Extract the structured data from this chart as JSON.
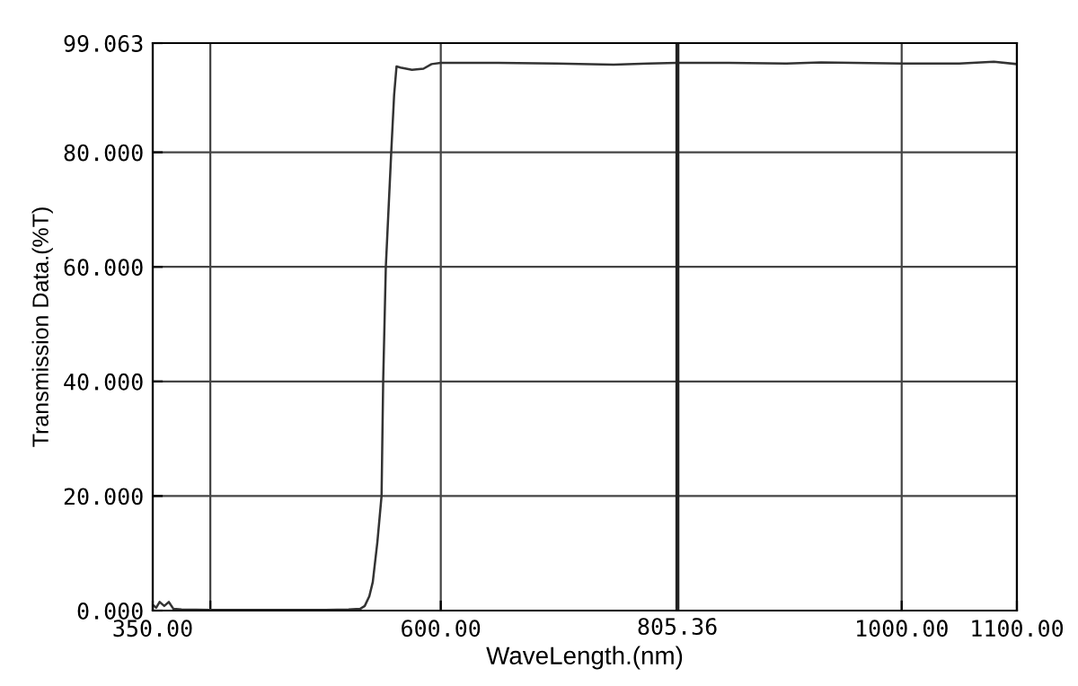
{
  "chart_data": {
    "type": "line",
    "xlabel": "WaveLength.(nm)",
    "ylabel": "Transmission Data.(%T)",
    "xlim": [
      350,
      1100
    ],
    "ylim": [
      0,
      99.063
    ],
    "xticks": [
      {
        "value": 350,
        "label": "350.00"
      },
      {
        "value": 400,
        "label": null
      },
      {
        "value": 600,
        "label": "600.00"
      },
      {
        "value": 1000,
        "label": "1000.00"
      },
      {
        "value": 1100,
        "label": "1100.00"
      }
    ],
    "yticks": [
      {
        "value": 0,
        "label": "0.000"
      },
      {
        "value": 20,
        "label": "20.000"
      },
      {
        "value": 40,
        "label": "40.000"
      },
      {
        "value": 60,
        "label": "60.000"
      },
      {
        "value": 80,
        "label": "80.000"
      },
      {
        "value": 99.063,
        "label": "99.063"
      }
    ],
    "grid": true,
    "legend": false,
    "marker": "none",
    "line_style": "solid",
    "ref_lines": [
      {
        "axis": "x",
        "value": 805.36,
        "label": "805.36",
        "color": "#222222",
        "line_style": "solid"
      }
    ],
    "x": [
      350,
      353,
      356,
      360,
      364,
      368,
      375,
      400,
      450,
      500,
      520,
      530,
      534,
      538,
      541,
      545,
      548.6,
      550,
      552.3,
      557,
      559.5,
      561.6,
      565,
      575,
      585,
      592,
      600,
      650,
      700,
      750,
      780,
      805,
      850,
      900,
      930,
      1000,
      1050,
      1080,
      1100
    ],
    "series": [
      {
        "color": "#333333",
        "values": [
          1.0,
          0.5,
          1.5,
          0.8,
          1.5,
          0.3,
          0.2,
          0.1,
          0.1,
          0.1,
          0.2,
          0.3,
          0.8,
          2.5,
          5,
          12,
          20,
          40,
          60,
          80,
          90,
          95,
          94.8,
          94.4,
          94.6,
          95.4,
          95.6,
          95.6,
          95.5,
          95.3,
          95.5,
          95.6,
          95.6,
          95.5,
          95.7,
          95.5,
          95.5,
          95.8,
          95.4
        ]
      }
    ]
  }
}
